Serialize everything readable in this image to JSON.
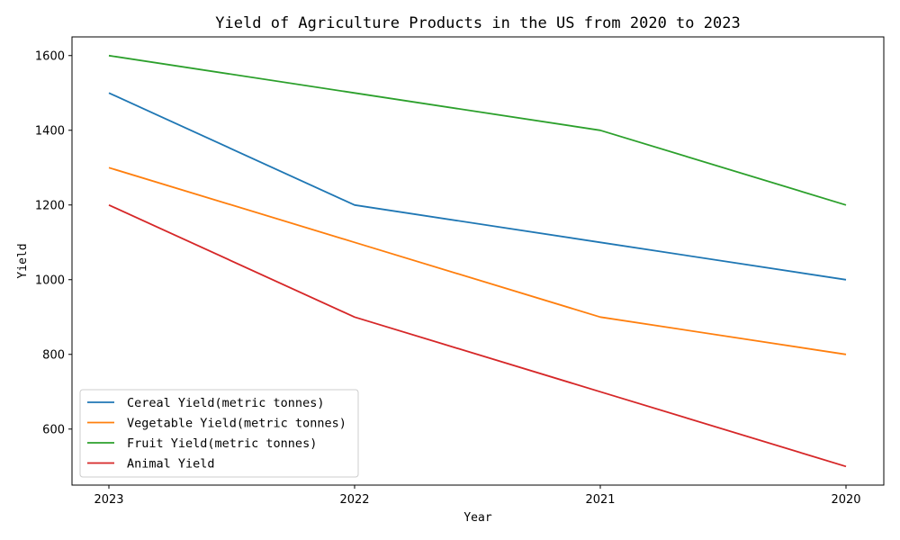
{
  "chart_data": {
    "type": "line",
    "title": "Yield of Agriculture Products in the US from 2020 to 2023",
    "xlabel": "Year",
    "ylabel": "Yield",
    "categories": [
      "2023",
      "2022",
      "2021",
      "2020"
    ],
    "ylim": [
      450,
      1650
    ],
    "yticks": [
      600,
      800,
      1000,
      1200,
      1400,
      1600
    ],
    "grid": false,
    "legend_position": "lower-left",
    "series": [
      {
        "name": "Cereal Yield(metric tonnes)",
        "color": "#1f77b4",
        "values": [
          1500,
          1200,
          1100,
          1000
        ]
      },
      {
        "name": "Vegetable Yield(metric tonnes)",
        "color": "#ff7f0e",
        "values": [
          1300,
          1100,
          900,
          800
        ]
      },
      {
        "name": "Fruit Yield(metric tonnes)",
        "color": "#2ca02c",
        "values": [
          1600,
          1500,
          1400,
          1200
        ]
      },
      {
        "name": "Animal Yield",
        "color": "#d62728",
        "values": [
          1200,
          900,
          700,
          500
        ]
      }
    ]
  }
}
